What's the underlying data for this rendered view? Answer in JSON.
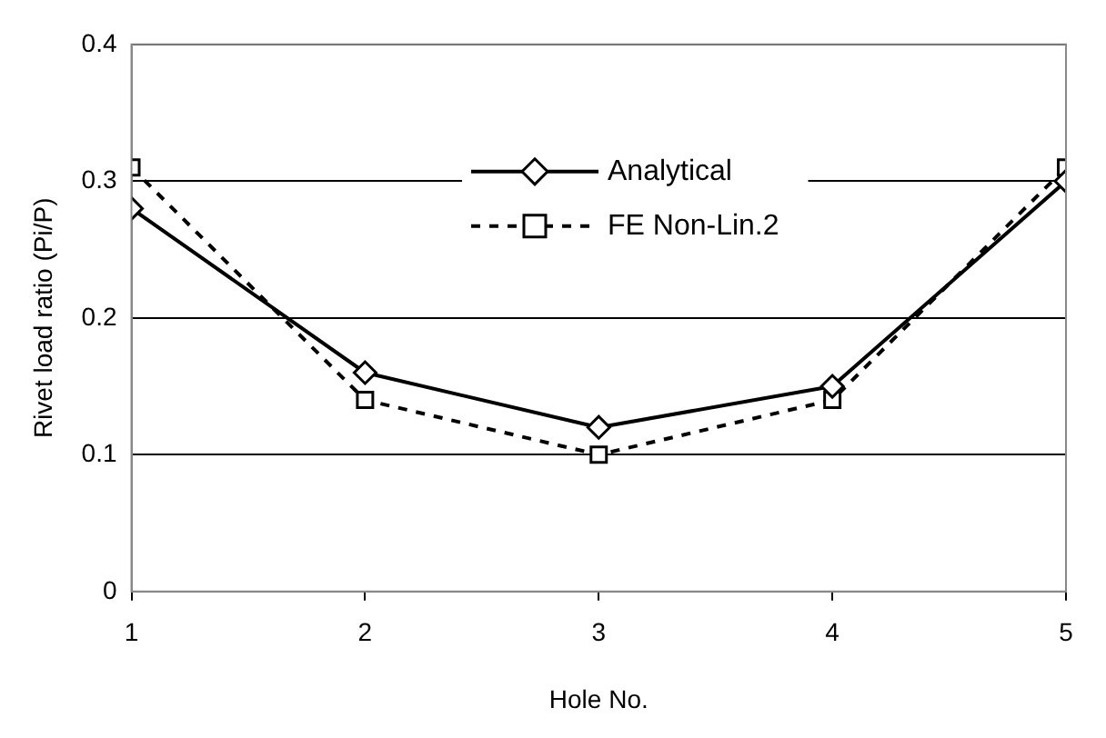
{
  "chart_data": {
    "type": "line",
    "xlabel": "Hole No.",
    "ylabel": "Rivet load ratio (Pi/P)",
    "x": [
      1,
      2,
      3,
      4,
      5
    ],
    "xlim": [
      1,
      5
    ],
    "xticks": [
      1,
      2,
      3,
      4,
      5
    ],
    "ylim": [
      0,
      0.4
    ],
    "yticks": [
      0,
      0.1,
      0.2,
      0.3,
      0.4
    ],
    "grid": "y",
    "legend": "top",
    "series": [
      {
        "name": "Analytical",
        "color": "#000000",
        "marker": "diamond",
        "line_style": "solid",
        "values": [
          0.28,
          0.16,
          0.12,
          0.15,
          0.3
        ]
      },
      {
        "name": "FE Non-Lin.2",
        "color": "#000000",
        "marker": "square",
        "line_style": "dashed",
        "values": [
          0.31,
          0.14,
          0.1,
          0.14,
          0.31
        ]
      }
    ]
  }
}
